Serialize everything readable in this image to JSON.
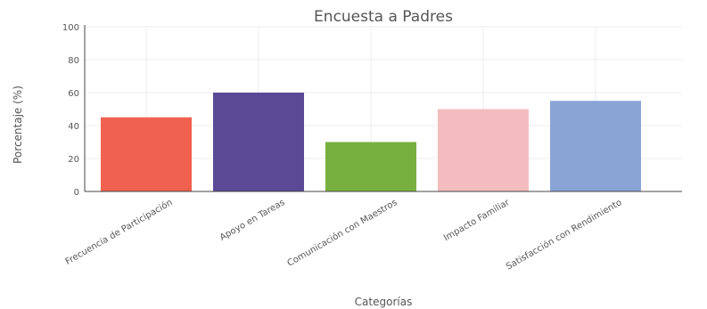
{
  "chart_data": {
    "type": "bar",
    "title": "Encuesta a Padres",
    "xlabel": "Categorías",
    "ylabel": "Porcentaje (%)",
    "ylim": [
      0,
      100
    ],
    "yticks": [
      0,
      20,
      40,
      60,
      80,
      100
    ],
    "categories": [
      "Frecuencia de Participación",
      "Apoyo en Tareas",
      "Comunicación con Maestros",
      "Impacto Familiar",
      "Satisfacción con Rendimiento"
    ],
    "values": [
      45,
      60,
      30,
      50,
      55
    ],
    "colors": [
      "#f0614f",
      "#5a4a96",
      "#78b040",
      "#f3bdc0",
      "#8aa4d6"
    ],
    "grid": true
  }
}
